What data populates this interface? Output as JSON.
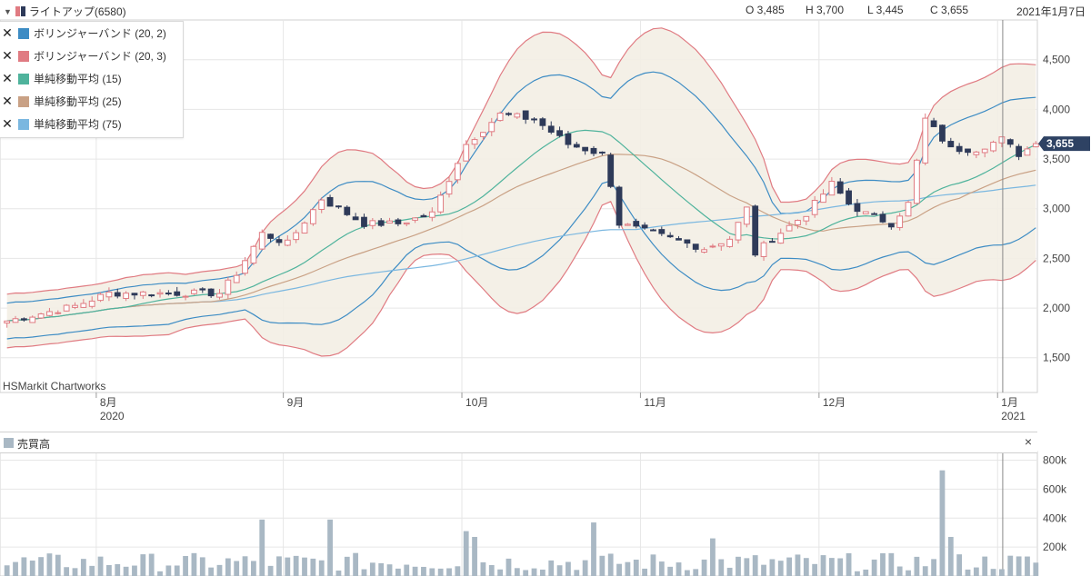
{
  "header": {
    "title": "ライトアップ(6580)",
    "open": "O 3,485",
    "high": "H 3,700",
    "low": "L 3,445",
    "close": "C 3,655",
    "date": "2021年1月7日"
  },
  "legend": [
    {
      "label": "ボリンジャーバンド (20, 2)",
      "color": "#3d8cc4"
    },
    {
      "label": "ボリンジャーバンド (20, 3)",
      "color": "#e07b82"
    },
    {
      "label": "単純移動平均 (15)",
      "color": "#4fb39c"
    },
    {
      "label": "単純移動平均 (25)",
      "color": "#c9a185"
    },
    {
      "label": "単純移動平均 (75)",
      "color": "#7ab7e0"
    }
  ],
  "credit": "HSMarkit Chartworks",
  "last_price_label": "3,655",
  "volume_panel": {
    "title": "売買高",
    "close_symbol": "×",
    "color": "#a9b8c4"
  },
  "colors": {
    "up_candle": "#e07b82",
    "down_candle": "#2e3a59",
    "band_fill": "#f3eee4",
    "price_tag": "#2e4263",
    "volume_bar": "#a9b8c4",
    "grid": "#e6e6e6"
  },
  "chart_data": [
    {
      "type": "candlestick",
      "title": "ライトアップ(6580)",
      "x_labels": [
        {
          "label": "8月",
          "sub": "2020",
          "index": 11
        },
        {
          "label": "9月",
          "sub": "",
          "index": 33
        },
        {
          "label": "10月",
          "sub": "",
          "index": 54
        },
        {
          "label": "11月",
          "sub": "",
          "index": 75
        },
        {
          "label": "12月",
          "sub": "",
          "index": 96
        },
        {
          "label": "1月",
          "sub": "2021",
          "index": 117
        }
      ],
      "y_ticks": [
        1500,
        2000,
        2500,
        3000,
        3500,
        4000,
        4500
      ],
      "ylim": [
        1150,
        4900
      ],
      "grid": true,
      "last_close": 3655,
      "price_points": [
        [
          0,
          1870
        ],
        [
          8,
          2020
        ],
        [
          12,
          2150
        ],
        [
          18,
          2150
        ],
        [
          25,
          2150
        ],
        [
          27,
          2350
        ],
        [
          30,
          2750
        ],
        [
          33,
          2650
        ],
        [
          37,
          3100
        ],
        [
          42,
          2850
        ],
        [
          46,
          2850
        ],
        [
          50,
          2950
        ],
        [
          54,
          3650
        ],
        [
          58,
          3950
        ],
        [
          62,
          3900
        ],
        [
          66,
          3650
        ],
        [
          70,
          3550
        ],
        [
          71,
          3250
        ],
        [
          72,
          2850
        ],
        [
          74,
          2800
        ],
        [
          78,
          2700
        ],
        [
          82,
          2600
        ],
        [
          85,
          2700
        ],
        [
          87,
          3000
        ],
        [
          88,
          2550
        ],
        [
          90,
          2700
        ],
        [
          94,
          2950
        ],
        [
          97,
          3250
        ],
        [
          99,
          3050
        ],
        [
          101,
          2950
        ],
        [
          104,
          2850
        ],
        [
          106,
          3050
        ],
        [
          108,
          3900
        ],
        [
          111,
          3600
        ],
        [
          114,
          3600
        ],
        [
          117,
          3700
        ],
        [
          119,
          3550
        ],
        [
          121,
          3655
        ]
      ],
      "volume_ticks": [
        200000,
        400000,
        600000,
        800000
      ],
      "volume_ylim": [
        0,
        860000
      ],
      "volume_base": 80000,
      "volume_spikes": [
        [
          30,
          390000
        ],
        [
          38,
          390000
        ],
        [
          54,
          310000
        ],
        [
          55,
          270000
        ],
        [
          69,
          370000
        ],
        [
          83,
          260000
        ],
        [
          110,
          730000
        ],
        [
          111,
          270000
        ]
      ]
    }
  ]
}
